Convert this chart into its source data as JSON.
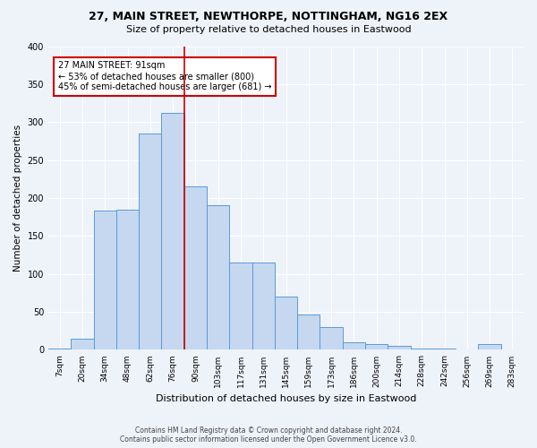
{
  "title1": "27, MAIN STREET, NEWTHORPE, NOTTINGHAM, NG16 2EX",
  "title2": "Size of property relative to detached houses in Eastwood",
  "xlabel": "Distribution of detached houses by size in Eastwood",
  "ylabel": "Number of detached properties",
  "categories": [
    "7sqm",
    "20sqm",
    "34sqm",
    "48sqm",
    "62sqm",
    "76sqm",
    "90sqm",
    "103sqm",
    "117sqm",
    "131sqm",
    "145sqm",
    "159sqm",
    "173sqm",
    "186sqm",
    "200sqm",
    "214sqm",
    "228sqm",
    "242sqm",
    "256sqm",
    "269sqm",
    "283sqm"
  ],
  "values": [
    2,
    15,
    183,
    185,
    285,
    312,
    215,
    190,
    115,
    115,
    70,
    46,
    30,
    10,
    8,
    5,
    2,
    2,
    1,
    7,
    1
  ],
  "bar_color": "#c5d8f0",
  "bar_edge_color": "#5b9bd5",
  "highlight_bin_index": 6,
  "vline_color": "#cc0000",
  "annotation_title": "27 MAIN STREET: 91sqm",
  "annotation_line1": "← 53% of detached houses are smaller (800)",
  "annotation_line2": "45% of semi-detached houses are larger (681) →",
  "annotation_box_color": "#ffffff",
  "annotation_box_edge": "#cc0000",
  "footer1": "Contains HM Land Registry data © Crown copyright and database right 2024.",
  "footer2": "Contains public sector information licensed under the Open Government Licence v3.0.",
  "ylim": [
    0,
    400
  ],
  "background_color": "#eef2f9",
  "grid_color": "#ffffff"
}
